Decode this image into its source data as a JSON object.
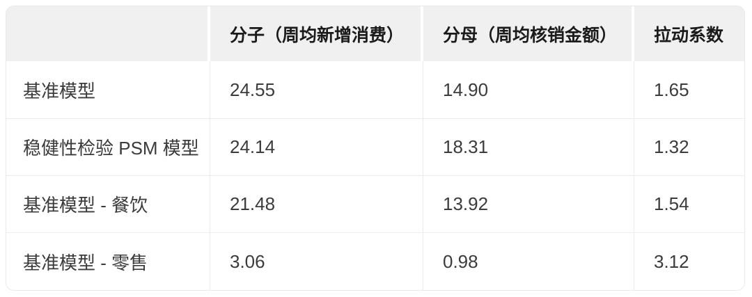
{
  "chart_data": {
    "type": "table",
    "columns": [
      "",
      "分子（周均新增消费）",
      "分母（周均核销金额）",
      "拉动系数"
    ],
    "rows": [
      [
        "基准模型",
        "24.55",
        "14.90",
        "1.65"
      ],
      [
        "稳健性检验 PSM 模型",
        "24.14",
        "18.31",
        "1.32"
      ],
      [
        "基准模型 - 餐饮",
        "21.48",
        "13.92",
        "1.54"
      ],
      [
        "基准模型 - 零售",
        "3.06",
        "0.98",
        "3.12"
      ]
    ]
  },
  "colors": {
    "background": "#ffffff",
    "header_bg": "#f0f0f0",
    "header_text": "#1b1b1b",
    "body_text": "#3b3b3b",
    "divider": "#ebebeb",
    "border": "#e8e8e8"
  }
}
